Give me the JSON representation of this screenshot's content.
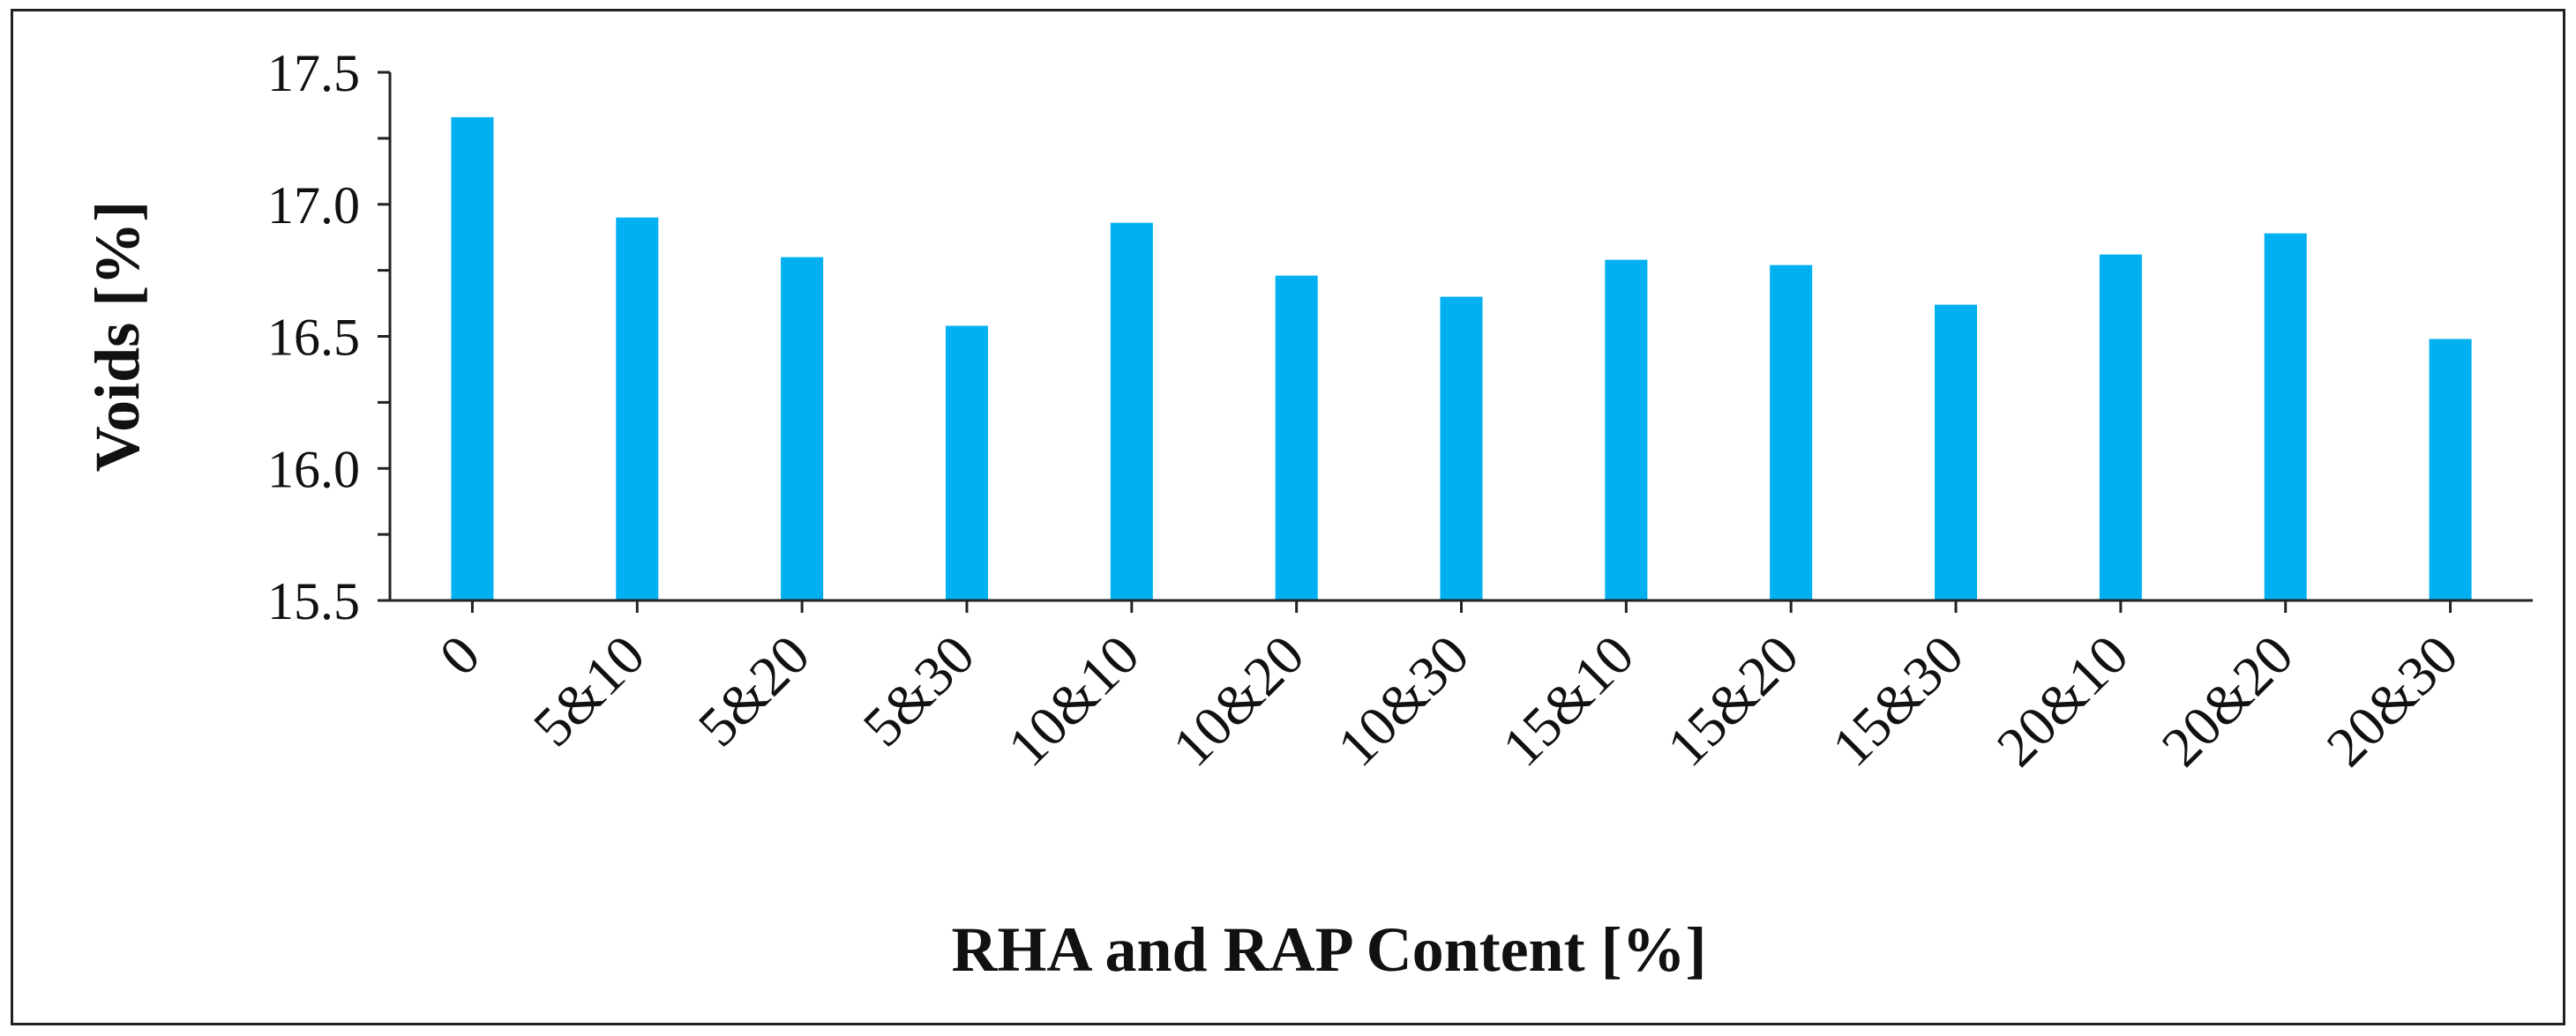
{
  "chart_data": {
    "type": "bar",
    "title": "",
    "xlabel": "RHA and RAP Content [%]",
    "ylabel": "Voids [%]",
    "ylim": [
      15.5,
      17.5
    ],
    "y_major_ticks": [
      "15.5",
      "16.0",
      "16.5",
      "17.0",
      "17.5"
    ],
    "y_minor_step": 0.25,
    "grid": false,
    "legend": "none",
    "categories": [
      "0",
      "5&10",
      "5&20",
      "5&30",
      "10&10",
      "10&20",
      "10&30",
      "15&10",
      "15&20",
      "15&30",
      "20&10",
      "20&20",
      "20&30"
    ],
    "series": [
      {
        "values": [
          17.33,
          16.95,
          16.8,
          16.54,
          16.93,
          16.73,
          16.65,
          16.79,
          16.77,
          16.62,
          16.81,
          16.89,
          16.49
        ]
      }
    ],
    "colors": {
      "bar": "#00B0F0",
      "axis": "#222222"
    }
  }
}
